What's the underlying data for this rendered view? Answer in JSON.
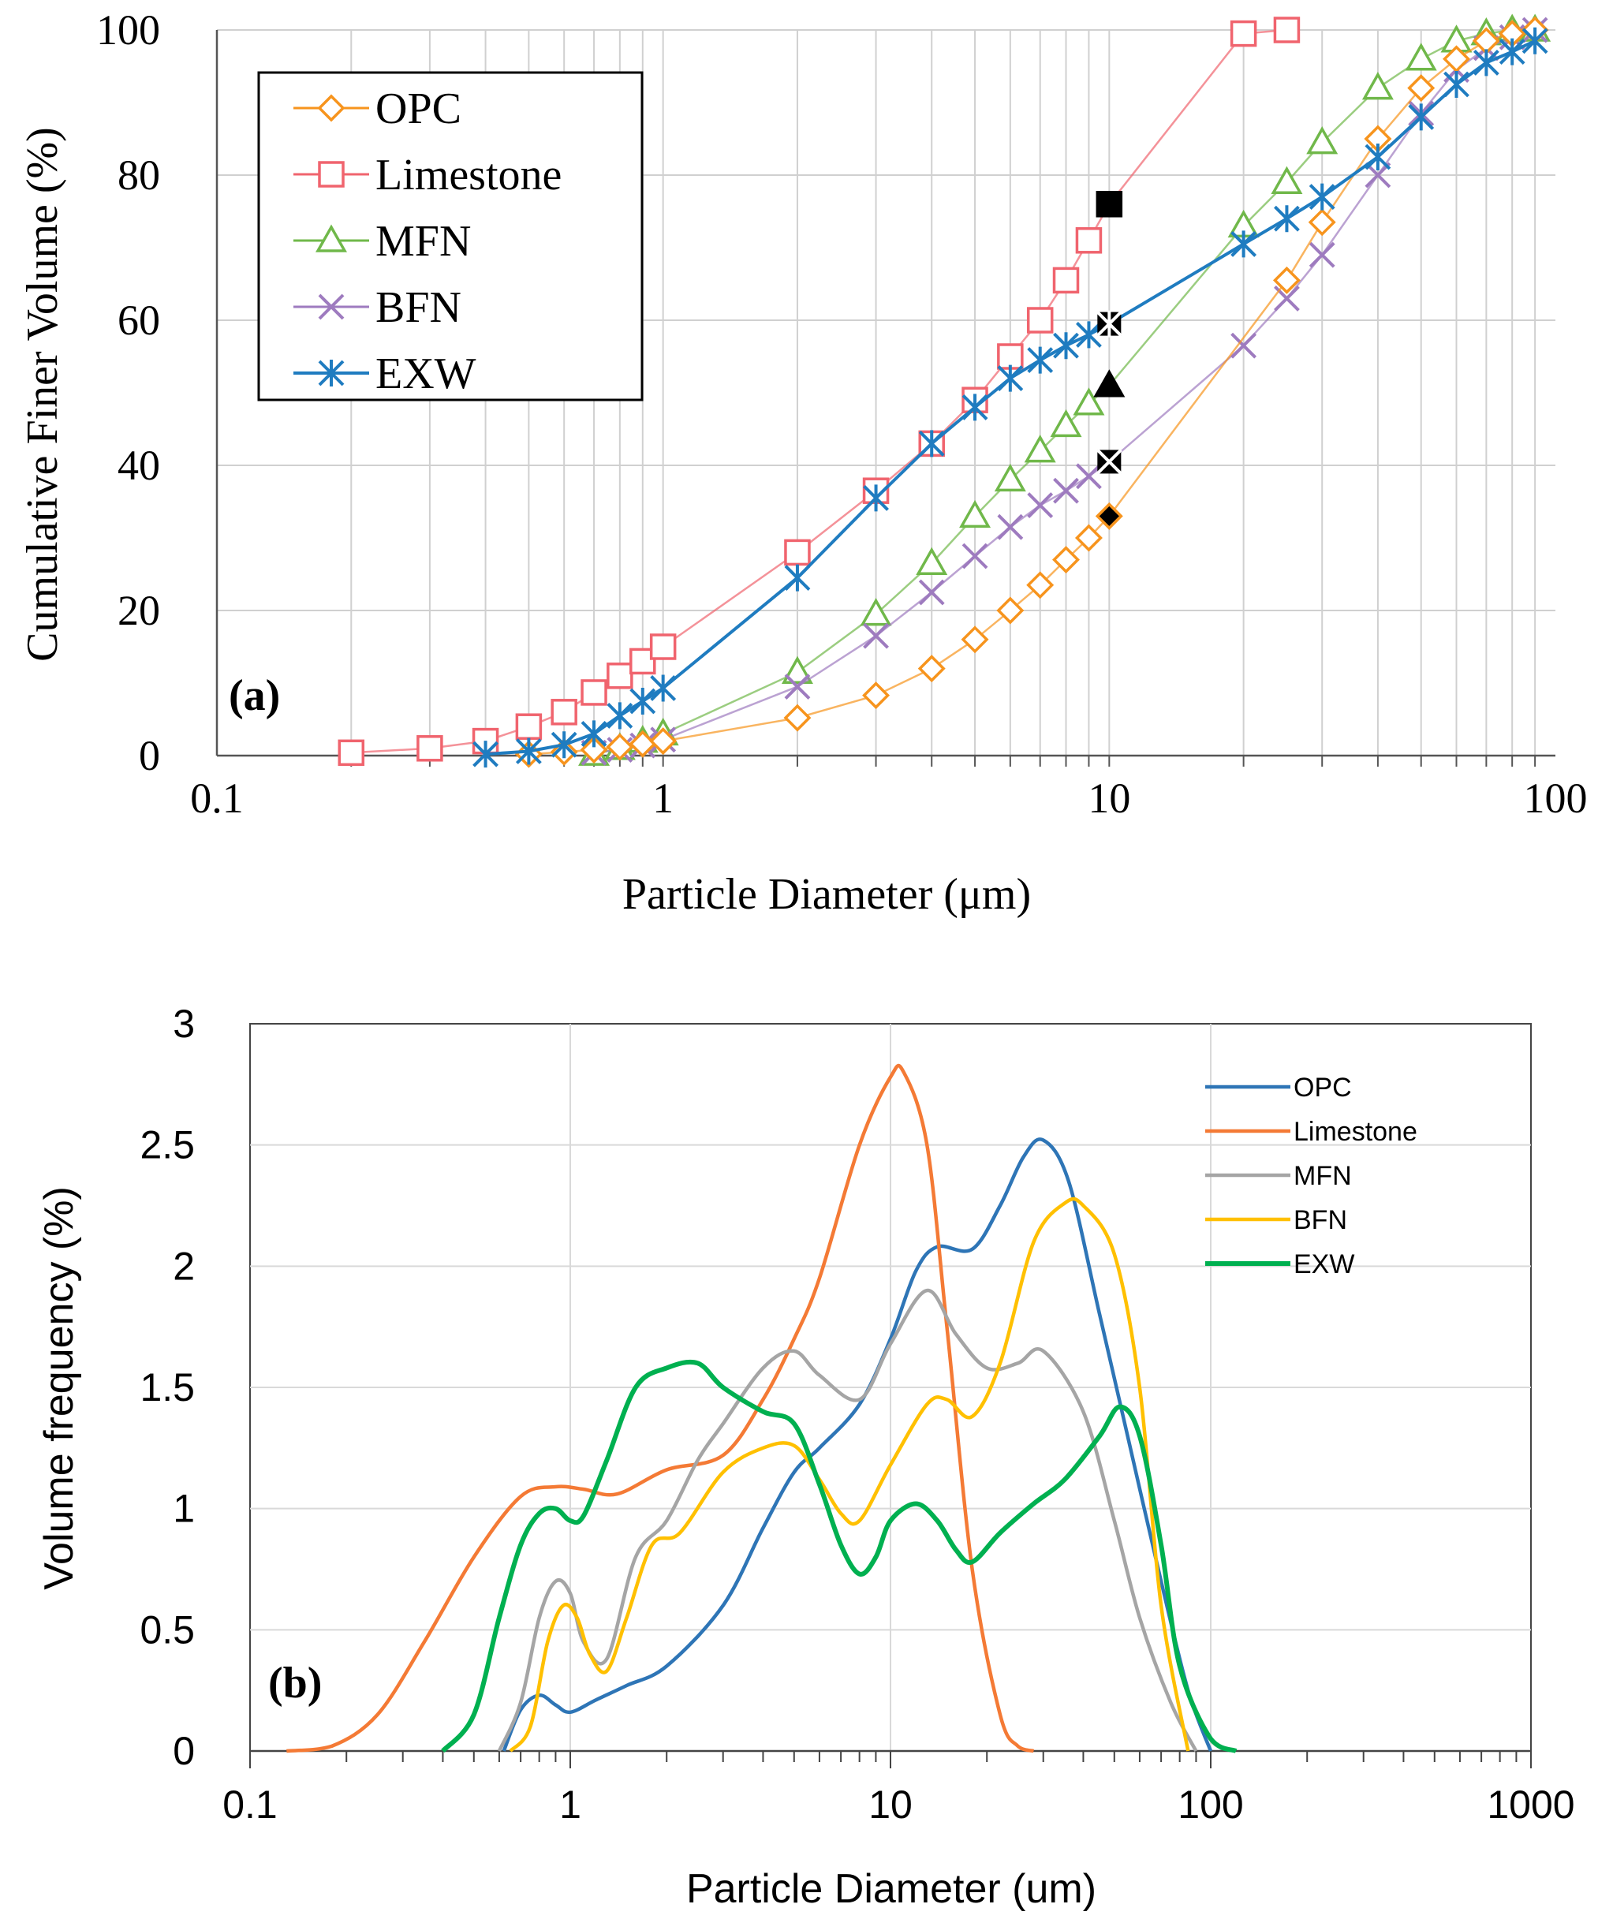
{
  "chart_data": [
    {
      "type": "line",
      "panel_label": "(a)",
      "xlabel": "Particle Diameter (μm)",
      "ylabel": "Cumulative Finer Volume (%)",
      "xscale": "log",
      "xlim": [
        0.1,
        100
      ],
      "ylim": [
        0,
        100
      ],
      "xticks": [
        "0.1",
        "1",
        "10",
        "100"
      ],
      "yticks": [
        "0",
        "20",
        "40",
        "60",
        "80",
        "100"
      ],
      "grid": true,
      "legend_position": "top-left",
      "series": [
        {
          "name": "OPC",
          "color": "#F7941D",
          "marker": "diamond",
          "x": [
            0.5,
            0.6,
            0.7,
            0.8,
            0.9,
            1,
            2,
            3,
            4,
            5,
            6,
            7,
            8,
            9,
            10,
            25,
            30,
            40,
            50,
            60,
            70,
            80,
            90
          ],
          "y": [
            0.2,
            0.5,
            0.8,
            1.2,
            1.6,
            2,
            5.2,
            8.3,
            12,
            16,
            20,
            23.5,
            27,
            30,
            33,
            65.5,
            73.5,
            85,
            92,
            96,
            98.5,
            99.5,
            100
          ],
          "highlight_x": 10
        },
        {
          "name": "Limestone",
          "color": "#F0646E",
          "marker": "square",
          "x": [
            0.2,
            0.3,
            0.4,
            0.5,
            0.6,
            0.7,
            0.8,
            0.9,
            1,
            2,
            3,
            4,
            5,
            6,
            7,
            8,
            9,
            10,
            20,
            25
          ],
          "y": [
            0.4,
            1.0,
            2.0,
            4.0,
            6.0,
            8.7,
            11,
            13,
            15,
            28,
            36.5,
            43,
            49,
            55,
            60,
            65.5,
            71,
            76,
            99.5,
            100
          ],
          "highlight_x": 10
        },
        {
          "name": "MFN",
          "color": "#70B84A",
          "marker": "triangle",
          "x": [
            0.7,
            0.8,
            0.9,
            1,
            2,
            3,
            4,
            5,
            6,
            7,
            8,
            9,
            10,
            20,
            25,
            30,
            40,
            50,
            60,
            70,
            80,
            90
          ],
          "y": [
            0.2,
            1.0,
            2.0,
            3.0,
            11.5,
            19.5,
            26.5,
            33,
            38,
            42,
            45.5,
            48.5,
            51,
            73,
            79,
            84.5,
            92,
            96,
            98.5,
            99.5,
            100,
            100
          ],
          "highlight_x": 10
        },
        {
          "name": "BFN",
          "color": "#9E7BBF",
          "marker": "x",
          "x": [
            0.7,
            0.8,
            0.9,
            1,
            2,
            3,
            4,
            5,
            6,
            7,
            8,
            9,
            10,
            20,
            25,
            30,
            40,
            50,
            60,
            70,
            80,
            90
          ],
          "y": [
            0.4,
            0.8,
            1.4,
            2.2,
            9.5,
            16.5,
            22.5,
            27.5,
            31.5,
            34.5,
            36.5,
            38.5,
            40.5,
            56.5,
            63,
            69,
            80,
            88.5,
            94.5,
            97.5,
            99,
            100
          ],
          "highlight_x": 10
        },
        {
          "name": "EXW",
          "color": "#1F7CC0",
          "marker": "asterisk",
          "x": [
            0.4,
            0.5,
            0.6,
            0.7,
            0.8,
            0.9,
            1,
            2,
            3,
            4,
            5,
            6,
            7,
            8,
            9,
            10,
            20,
            25,
            30,
            40,
            50,
            60,
            70,
            80,
            90
          ],
          "y": [
            0.2,
            0.6,
            1.5,
            3.0,
            5.5,
            7.5,
            9.3,
            24.5,
            35.5,
            43,
            48,
            52,
            54.5,
            56.5,
            58,
            59.5,
            70.5,
            74,
            77,
            82.5,
            88,
            92.5,
            95.5,
            97,
            98.5
          ],
          "highlight_x": 10
        }
      ]
    },
    {
      "type": "line",
      "panel_label": "(b)",
      "xlabel": "Particle Diameter (um)",
      "ylabel": "Volume frequency (%)",
      "xscale": "log",
      "xlim": [
        0.1,
        1000
      ],
      "ylim": [
        0,
        3
      ],
      "xticks": [
        "0.1",
        "1",
        "10",
        "100",
        "1000"
      ],
      "yticks": [
        "0",
        "0.5",
        "1",
        "1.5",
        "2",
        "2.5",
        "3"
      ],
      "grid": true,
      "legend_position": "top-right",
      "series": [
        {
          "name": "OPC",
          "color": "#2E75B6",
          "x": [
            0.62,
            0.7,
            0.8,
            0.9,
            1.0,
            1.2,
            1.5,
            2,
            3,
            4,
            5,
            6,
            8,
            10,
            12,
            14,
            18,
            22,
            26,
            30,
            36,
            45,
            55,
            70,
            85,
            100
          ],
          "y": [
            0,
            0.17,
            0.23,
            0.19,
            0.16,
            0.21,
            0.27,
            0.35,
            0.6,
            0.92,
            1.15,
            1.25,
            1.43,
            1.7,
            1.98,
            2.08,
            2.07,
            2.25,
            2.45,
            2.52,
            2.35,
            1.8,
            1.3,
            0.7,
            0.25,
            0
          ]
        },
        {
          "name": "Limestone",
          "color": "#F47A35",
          "x": [
            0.13,
            0.18,
            0.25,
            0.35,
            0.5,
            0.7,
            0.9,
            1.1,
            1.4,
            2,
            3,
            4,
            5,
            6,
            8,
            10,
            11,
            13,
            15,
            18,
            22,
            25,
            28
          ],
          "y": [
            0,
            0.02,
            0.15,
            0.45,
            0.8,
            1.05,
            1.09,
            1.08,
            1.06,
            1.16,
            1.22,
            1.45,
            1.7,
            1.95,
            2.5,
            2.78,
            2.8,
            2.5,
            1.75,
            0.75,
            0.15,
            0.02,
            0
          ]
        },
        {
          "name": "MFN",
          "color": "#A5A5A5",
          "x": [
            0.6,
            0.7,
            0.8,
            0.9,
            1.0,
            1.1,
            1.3,
            1.6,
            2,
            2.5,
            3,
            4,
            5,
            6,
            8,
            10,
            13,
            16,
            20,
            25,
            30,
            40,
            50,
            60,
            75,
            90
          ],
          "y": [
            0,
            0.2,
            0.55,
            0.7,
            0.65,
            0.45,
            0.38,
            0.8,
            0.95,
            1.2,
            1.35,
            1.58,
            1.65,
            1.55,
            1.45,
            1.68,
            1.9,
            1.72,
            1.58,
            1.6,
            1.65,
            1.4,
            0.95,
            0.55,
            0.2,
            0
          ]
        },
        {
          "name": "BFN",
          "color": "#FFC000",
          "x": [
            0.65,
            0.75,
            0.85,
            0.95,
            1.05,
            1.15,
            1.3,
            1.5,
            1.8,
            2.2,
            3,
            4,
            5,
            6,
            7,
            8,
            10,
            13,
            15,
            18,
            22,
            28,
            35,
            40,
            50,
            60,
            70,
            85
          ],
          "y": [
            0,
            0.1,
            0.45,
            0.6,
            0.55,
            0.4,
            0.33,
            0.55,
            0.85,
            0.9,
            1.15,
            1.25,
            1.26,
            1.12,
            0.98,
            0.95,
            1.18,
            1.43,
            1.45,
            1.38,
            1.6,
            2.1,
            2.26,
            2.25,
            2.05,
            1.5,
            0.6,
            0
          ]
        },
        {
          "name": "EXW",
          "color": "#00B050",
          "x": [
            0.4,
            0.5,
            0.6,
            0.7,
            0.8,
            0.9,
            1.0,
            1.1,
            1.3,
            1.6,
            2,
            2.5,
            3,
            4,
            5,
            6,
            7,
            8,
            9,
            10,
            12,
            14,
            16,
            18,
            22,
            28,
            35,
            45,
            52,
            60,
            70,
            80,
            100,
            120
          ],
          "y": [
            0,
            0.15,
            0.55,
            0.85,
            0.98,
            1.0,
            0.95,
            0.97,
            1.2,
            1.5,
            1.58,
            1.6,
            1.5,
            1.4,
            1.35,
            1.1,
            0.85,
            0.73,
            0.8,
            0.95,
            1.02,
            0.95,
            0.83,
            0.78,
            0.9,
            1.02,
            1.12,
            1.3,
            1.42,
            1.3,
            0.85,
            0.35,
            0.05,
            0
          ]
        }
      ]
    }
  ]
}
